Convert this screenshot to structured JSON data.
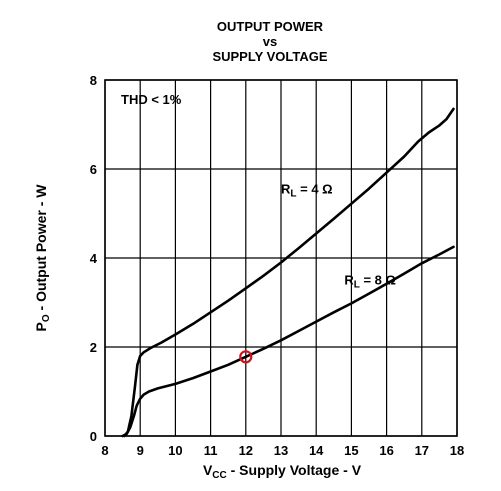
{
  "chart_data": {
    "type": "line",
    "title_lines": [
      "OUTPUT POWER",
      "vs",
      "SUPPLY VOLTAGE"
    ],
    "xlabel": {
      "prefix": "V",
      "sub": "CC",
      "suffix": " - Supply Voltage - V"
    },
    "ylabel": {
      "prefix": "P",
      "sub": "O",
      "suffix": " - Output Power - W"
    },
    "xlim": [
      8,
      18
    ],
    "ylim": [
      0,
      8
    ],
    "xticks": [
      "8",
      "9",
      "10",
      "11",
      "12",
      "13",
      "14",
      "15",
      "16",
      "17",
      "18"
    ],
    "yticks": [
      "0",
      "2",
      "4",
      "6",
      "8"
    ],
    "grid": true,
    "annotation": "THD < 1%",
    "series": [
      {
        "name": "RL = 4 Ω",
        "label": {
          "prefix": "R",
          "sub": "L",
          "suffix": " = 4 Ω"
        },
        "x": [
          8.55,
          8.65,
          8.75,
          8.85,
          8.92,
          9.0,
          9.1,
          9.3,
          9.6,
          10.0,
          10.5,
          11.0,
          11.5,
          12.0,
          12.5,
          13.0,
          13.5,
          14.0,
          14.5,
          15.0,
          15.5,
          16.0,
          16.5,
          16.9,
          17.2,
          17.5,
          17.7,
          17.9
        ],
        "values": [
          0.0,
          0.1,
          0.45,
          1.1,
          1.6,
          1.8,
          1.88,
          1.98,
          2.1,
          2.28,
          2.52,
          2.78,
          3.04,
          3.32,
          3.6,
          3.9,
          4.22,
          4.55,
          4.88,
          5.22,
          5.56,
          5.92,
          6.28,
          6.62,
          6.82,
          6.98,
          7.12,
          7.35
        ]
      },
      {
        "name": "RL = 8 Ω",
        "label": {
          "prefix": "R",
          "sub": "L",
          "suffix": " = 8 Ω"
        },
        "x": [
          8.5,
          8.62,
          8.72,
          8.82,
          8.9,
          9.0,
          9.1,
          9.25,
          9.5,
          10.0,
          10.5,
          11.0,
          11.5,
          12.0,
          12.5,
          13.0,
          13.5,
          14.0,
          14.5,
          15.0,
          15.5,
          16.0,
          16.5,
          17.0,
          17.5,
          17.9
        ],
        "values": [
          0.0,
          0.05,
          0.2,
          0.45,
          0.68,
          0.84,
          0.93,
          1.0,
          1.07,
          1.17,
          1.3,
          1.45,
          1.6,
          1.78,
          1.96,
          2.15,
          2.36,
          2.57,
          2.78,
          2.98,
          3.2,
          3.42,
          3.65,
          3.88,
          4.08,
          4.25
        ]
      }
    ],
    "highlight": {
      "x": 12,
      "y": 1.78,
      "color": "#d0121b"
    }
  }
}
